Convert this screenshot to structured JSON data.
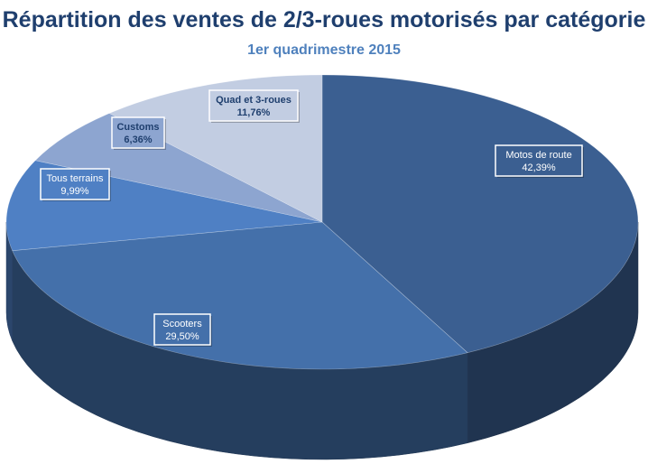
{
  "chart_data": {
    "type": "pie",
    "title": "Répartition des ventes de 2/3-roues motorisés par catégorie",
    "subtitle": "1er quadrimestre  2015",
    "slices": [
      {
        "label": "Motos de route",
        "value": 42.39,
        "display": "42,39%",
        "color": "#3b5f91"
      },
      {
        "label": "Scooters",
        "value": 29.5,
        "display": "29,50%",
        "color": "#4470aa"
      },
      {
        "label": "Tous terrains",
        "value": 9.99,
        "display": "9,99%",
        "color": "#4f80c4"
      },
      {
        "label": "Customs",
        "value": 6.36,
        "display": "6,36%",
        "color": "#8da5d0"
      },
      {
        "label": "Quad et 3-roues",
        "value": 11.76,
        "display": "11,76%",
        "color": "#c2cde2"
      }
    ]
  }
}
